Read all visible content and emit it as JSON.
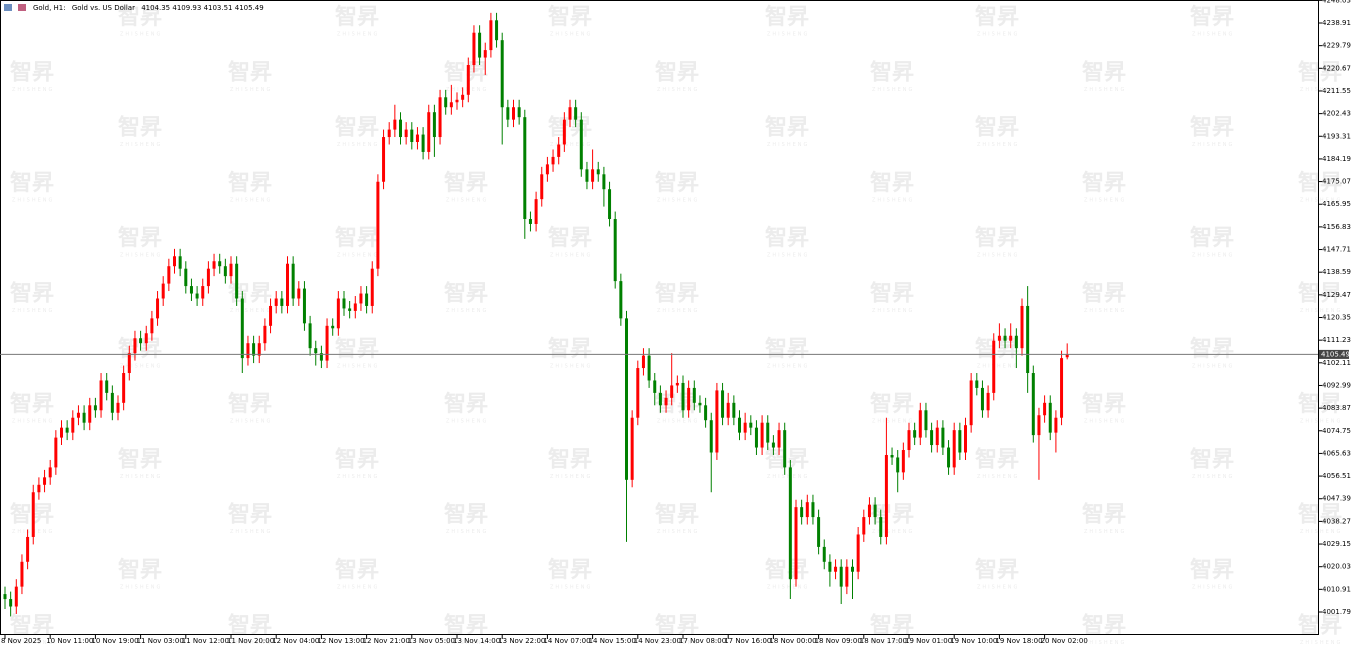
{
  "chart_data": {
    "type": "candlestick",
    "symbol": "Gold, H1:",
    "description": "Gold vs. US Dollar",
    "watermark": "智昇",
    "watermark_sub": "ZHISHENG",
    "up_color": "#ff0000",
    "down_color": "#008000",
    "ylim": [
      3992.53,
      4248.17
    ],
    "yticks": [
      4248.03,
      4238.91,
      4229.79,
      4220.67,
      4211.55,
      4202.43,
      4193.31,
      4184.19,
      4175.07,
      4165.95,
      4156.83,
      4147.71,
      4138.59,
      4129.47,
      4120.35,
      4111.23,
      4102.11,
      4092.99,
      4083.87,
      4074.75,
      4065.63,
      4056.51,
      4047.39,
      4038.27,
      4029.15,
      4020.03,
      4010.91,
      4001.79
    ],
    "categories": [
      "8 Nov 2025",
      null,
      null,
      null,
      null,
      null,
      null,
      null,
      "10 Nov 11:00",
      null,
      null,
      null,
      null,
      null,
      null,
      null,
      "10 Nov 19:00",
      null,
      null,
      null,
      null,
      null,
      null,
      null,
      "11 Nov 03:00",
      null,
      null,
      null,
      null,
      null,
      null,
      null,
      "11 Nov 12:00",
      null,
      null,
      null,
      null,
      null,
      null,
      null,
      "11 Nov 20:00",
      null,
      null,
      null,
      null,
      null,
      null,
      null,
      "12 Nov 04:00",
      null,
      null,
      null,
      null,
      null,
      null,
      null,
      "12 Nov 13:00",
      null,
      null,
      null,
      null,
      null,
      null,
      null,
      "12 Nov 21:00",
      null,
      null,
      null,
      null,
      null,
      null,
      null,
      "13 Nov 05:00",
      null,
      null,
      null,
      null,
      null,
      null,
      null,
      "13 Nov 14:00",
      null,
      null,
      null,
      null,
      null,
      null,
      null,
      "13 Nov 22:00",
      null,
      null,
      null,
      null,
      null,
      null,
      null,
      "14 Nov 07:00",
      null,
      null,
      null,
      null,
      null,
      null,
      null,
      "14 Nov 15:00",
      null,
      null,
      null,
      null,
      null,
      null,
      null,
      "14 Nov 23:00",
      null,
      null,
      null,
      null,
      null,
      null,
      null,
      "17 Nov 08:00",
      null,
      null,
      null,
      null,
      null,
      null,
      null,
      "17 Nov 16:00",
      null,
      null,
      null,
      null,
      null,
      null,
      null,
      "18 Nov 00:00",
      null,
      null,
      null,
      null,
      null,
      null,
      null,
      "18 Nov 09:00",
      null,
      null,
      null,
      null,
      null,
      null,
      null,
      "18 Nov 17:00",
      null,
      null,
      null,
      null,
      null,
      null,
      null,
      "19 Nov 01:00",
      null,
      null,
      null,
      null,
      null,
      null,
      null,
      "19 Nov 10:00",
      null,
      null,
      null,
      null,
      null,
      null,
      null,
      "19 Nov 18:00",
      null,
      null,
      null,
      null,
      null,
      null,
      null,
      "20 Nov 02:00",
      null,
      null,
      null,
      null
    ],
    "ohlc": [
      [
        4009,
        4012,
        4003,
        4007
      ],
      [
        4007,
        4010,
        4000,
        4004
      ],
      [
        4004,
        4015,
        4001,
        4012
      ],
      [
        4012,
        4025,
        4009,
        4022
      ],
      [
        4022,
        4035,
        4019,
        4032
      ],
      [
        4032,
        4053,
        4029,
        4050
      ],
      [
        4050,
        4056,
        4047,
        4053
      ],
      [
        4053,
        4059,
        4050,
        4056
      ],
      [
        4056,
        4063,
        4053,
        4060
      ],
      [
        4060,
        4075,
        4057,
        4072
      ],
      [
        4072,
        4079,
        4069,
        4076
      ],
      [
        4076,
        4079,
        4071,
        4074
      ],
      [
        4074,
        4083,
        4071,
        4080
      ],
      [
        4080,
        4085,
        4077,
        4082
      ],
      [
        4082,
        4085,
        4075,
        4078
      ],
      [
        4078,
        4088,
        4075,
        4085
      ],
      [
        4085,
        4088,
        4080,
        4083
      ],
      [
        4083,
        4098,
        4080,
        4095
      ],
      [
        4095,
        4098,
        4087,
        4090
      ],
      [
        4090,
        4093,
        4079,
        4082
      ],
      [
        4082,
        4089,
        4079,
        4086
      ],
      [
        4086,
        4101,
        4083,
        4098
      ],
      [
        4098,
        4109,
        4095,
        4106
      ],
      [
        4106,
        4115,
        4103,
        4112
      ],
      [
        4112,
        4115,
        4107,
        4110
      ],
      [
        4110,
        4117,
        4107,
        4114
      ],
      [
        4114,
        4123,
        4111,
        4120
      ],
      [
        4120,
        4131,
        4117,
        4128
      ],
      [
        4128,
        4137,
        4125,
        4134
      ],
      [
        4134,
        4144,
        4131,
        4141
      ],
      [
        4141,
        4148,
        4138,
        4145
      ],
      [
        4145,
        4148,
        4137,
        4140
      ],
      [
        4140,
        4143,
        4130,
        4133
      ],
      [
        4133,
        4136,
        4127,
        4130
      ],
      [
        4130,
        4133,
        4125,
        4128
      ],
      [
        4128,
        4136,
        4125,
        4133
      ],
      [
        4133,
        4143,
        4130,
        4140
      ],
      [
        4140,
        4146,
        4137,
        4143
      ],
      [
        4143,
        4146,
        4138,
        4141
      ],
      [
        4141,
        4144,
        4134,
        4137
      ],
      [
        4137,
        4145,
        4134,
        4142
      ],
      [
        4142,
        4145,
        4125,
        4128
      ],
      [
        4128,
        4131,
        4098,
        4104
      ],
      [
        4104,
        4113,
        4101,
        4110
      ],
      [
        4110,
        4113,
        4102,
        4105
      ],
      [
        4105,
        4113,
        4102,
        4110
      ],
      [
        4110,
        4120,
        4107,
        4117
      ],
      [
        4117,
        4128,
        4114,
        4125
      ],
      [
        4125,
        4131,
        4122,
        4128
      ],
      [
        4128,
        4131,
        4122,
        4125
      ],
      [
        4125,
        4145,
        4122,
        4142
      ],
      [
        4142,
        4145,
        4125,
        4128
      ],
      [
        4128,
        4135,
        4125,
        4132
      ],
      [
        4132,
        4135,
        4115,
        4118
      ],
      [
        4118,
        4121,
        4105,
        4108
      ],
      [
        4108,
        4111,
        4101,
        4106
      ],
      [
        4106,
        4109,
        4100,
        4103
      ],
      [
        4103,
        4120,
        4100,
        4117
      ],
      [
        4117,
        4120,
        4113,
        4116
      ],
      [
        4116,
        4131,
        4113,
        4128
      ],
      [
        4128,
        4131,
        4121,
        4124
      ],
      [
        4124,
        4127,
        4120,
        4123
      ],
      [
        4123,
        4129,
        4120,
        4126
      ],
      [
        4126,
        4133,
        4123,
        4130
      ],
      [
        4130,
        4133,
        4122,
        4125
      ],
      [
        4125,
        4143,
        4122,
        4140
      ],
      [
        4140,
        4178,
        4137,
        4175
      ],
      [
        4175,
        4196,
        4172,
        4193
      ],
      [
        4193,
        4199,
        4190,
        4196
      ],
      [
        4196,
        4206,
        4193,
        4200
      ],
      [
        4200,
        4203,
        4190,
        4193
      ],
      [
        4193,
        4199,
        4190,
        4196
      ],
      [
        4196,
        4199,
        4188,
        4191
      ],
      [
        4191,
        4197,
        4188,
        4194
      ],
      [
        4194,
        4197,
        4184,
        4187
      ],
      [
        4187,
        4206,
        4184,
        4203
      ],
      [
        4203,
        4206,
        4185,
        4193
      ],
      [
        4193,
        4212,
        4190,
        4209
      ],
      [
        4209,
        4212,
        4202,
        4205
      ],
      [
        4205,
        4214,
        4202,
        4207
      ],
      [
        4207,
        4211,
        4204,
        4208
      ],
      [
        4208,
        4213,
        4205,
        4210
      ],
      [
        4210,
        4225,
        4207,
        4222
      ],
      [
        4222,
        4238,
        4219,
        4235
      ],
      [
        4235,
        4238,
        4222,
        4225
      ],
      [
        4225,
        4231,
        4218,
        4228
      ],
      [
        4228,
        4243,
        4225,
        4240
      ],
      [
        4240,
        4243,
        4229,
        4232
      ],
      [
        4232,
        4235,
        4190,
        4205
      ],
      [
        4205,
        4208,
        4197,
        4200
      ],
      [
        4200,
        4208,
        4197,
        4205
      ],
      [
        4205,
        4208,
        4198,
        4201
      ],
      [
        4201,
        4204,
        4152,
        4160
      ],
      [
        4160,
        4163,
        4155,
        4158
      ],
      [
        4158,
        4171,
        4155,
        4168
      ],
      [
        4168,
        4181,
        4165,
        4178
      ],
      [
        4178,
        4185,
        4175,
        4182
      ],
      [
        4182,
        4188,
        4179,
        4185
      ],
      [
        4185,
        4193,
        4182,
        4190
      ],
      [
        4190,
        4203,
        4187,
        4200
      ],
      [
        4200,
        4208,
        4197,
        4205
      ],
      [
        4205,
        4208,
        4197,
        4200
      ],
      [
        4200,
        4203,
        4177,
        4180
      ],
      [
        4180,
        4183,
        4172,
        4175
      ],
      [
        4175,
        4188,
        4172,
        4180
      ],
      [
        4180,
        4183,
        4175,
        4178
      ],
      [
        4178,
        4181,
        4165,
        4172
      ],
      [
        4172,
        4175,
        4157,
        4160
      ],
      [
        4160,
        4163,
        4132,
        4135
      ],
      [
        4135,
        4138,
        4117,
        4120
      ],
      [
        4120,
        4123,
        4030,
        4055
      ],
      [
        4055,
        4083,
        4052,
        4080
      ],
      [
        4080,
        4103,
        4077,
        4100
      ],
      [
        4100,
        4108,
        4097,
        4105
      ],
      [
        4105,
        4108,
        4092,
        4095
      ],
      [
        4095,
        4098,
        4085,
        4090
      ],
      [
        4090,
        4093,
        4082,
        4085
      ],
      [
        4085,
        4091,
        4082,
        4088
      ],
      [
        4088,
        4106,
        4085,
        4093
      ],
      [
        4093,
        4097,
        4090,
        4094
      ],
      [
        4094,
        4097,
        4080,
        4083
      ],
      [
        4083,
        4095,
        4080,
        4092
      ],
      [
        4092,
        4095,
        4083,
        4086
      ],
      [
        4086,
        4089,
        4082,
        4085
      ],
      [
        4085,
        4088,
        4076,
        4079
      ],
      [
        4079,
        4082,
        4050,
        4066
      ],
      [
        4066,
        4094,
        4063,
        4091
      ],
      [
        4091,
        4094,
        4077,
        4080
      ],
      [
        4080,
        4090,
        4077,
        4086
      ],
      [
        4086,
        4089,
        4077,
        4080
      ],
      [
        4080,
        4083,
        4071,
        4074
      ],
      [
        4074,
        4082,
        4071,
        4078
      ],
      [
        4078,
        4081,
        4073,
        4076
      ],
      [
        4076,
        4079,
        4065,
        4068
      ],
      [
        4068,
        4081,
        4065,
        4078
      ],
      [
        4078,
        4081,
        4067,
        4070
      ],
      [
        4070,
        4073,
        4065,
        4068
      ],
      [
        4068,
        4078,
        4065,
        4075
      ],
      [
        4075,
        4078,
        4057,
        4060
      ],
      [
        4060,
        4063,
        4007,
        4015
      ],
      [
        4015,
        4047,
        4012,
        4044
      ],
      [
        4044,
        4047,
        4037,
        4040
      ],
      [
        4040,
        4049,
        4037,
        4046
      ],
      [
        4046,
        4049,
        4037,
        4040
      ],
      [
        4040,
        4043,
        4025,
        4028
      ],
      [
        4028,
        4031,
        4019,
        4022
      ],
      [
        4022,
        4025,
        4012,
        4018
      ],
      [
        4018,
        4023,
        4015,
        4020
      ],
      [
        4020,
        4023,
        4005,
        4012
      ],
      [
        4012,
        4023,
        4009,
        4020
      ],
      [
        4020,
        4023,
        4007,
        4018
      ],
      [
        4018,
        4036,
        4015,
        4033
      ],
      [
        4033,
        4043,
        4030,
        4040
      ],
      [
        4040,
        4048,
        4037,
        4045
      ],
      [
        4045,
        4048,
        4037,
        4040
      ],
      [
        4040,
        4043,
        4029,
        4032
      ],
      [
        4032,
        4080,
        4029,
        4065
      ],
      [
        4065,
        4068,
        4061,
        4064
      ],
      [
        4064,
        4067,
        4050,
        4058
      ],
      [
        4058,
        4070,
        4055,
        4067
      ],
      [
        4067,
        4078,
        4064,
        4075
      ],
      [
        4075,
        4078,
        4069,
        4072
      ],
      [
        4072,
        4086,
        4069,
        4083
      ],
      [
        4083,
        4086,
        4072,
        4075
      ],
      [
        4075,
        4078,
        4066,
        4069
      ],
      [
        4069,
        4079,
        4066,
        4076
      ],
      [
        4076,
        4079,
        4065,
        4068
      ],
      [
        4068,
        4071,
        4057,
        4060
      ],
      [
        4060,
        4078,
        4057,
        4075
      ],
      [
        4075,
        4078,
        4063,
        4066
      ],
      [
        4066,
        4080,
        4063,
        4077
      ],
      [
        4077,
        4098,
        4074,
        4095
      ],
      [
        4095,
        4098,
        4089,
        4092
      ],
      [
        4092,
        4095,
        4080,
        4083
      ],
      [
        4083,
        4093,
        4080,
        4090
      ],
      [
        4090,
        4114,
        4087,
        4111
      ],
      [
        4111,
        4118,
        4108,
        4113
      ],
      [
        4113,
        4116,
        4108,
        4111
      ],
      [
        4111,
        4118,
        4108,
        4113
      ],
      [
        4113,
        4116,
        4100,
        4108
      ],
      [
        4108,
        4128,
        4105,
        4125
      ],
      [
        4125,
        4133,
        4090,
        4098
      ],
      [
        4098,
        4101,
        4070,
        4073
      ],
      [
        4073,
        4084,
        4055,
        4081
      ],
      [
        4081,
        4089,
        4078,
        4086
      ],
      [
        4086,
        4089,
        4071,
        4074
      ],
      [
        4074,
        4083,
        4066,
        4080
      ],
      [
        4080,
        4107,
        4077,
        4104
      ],
      [
        4104.35,
        4109.93,
        4103.51,
        4105.49
      ]
    ]
  }
}
